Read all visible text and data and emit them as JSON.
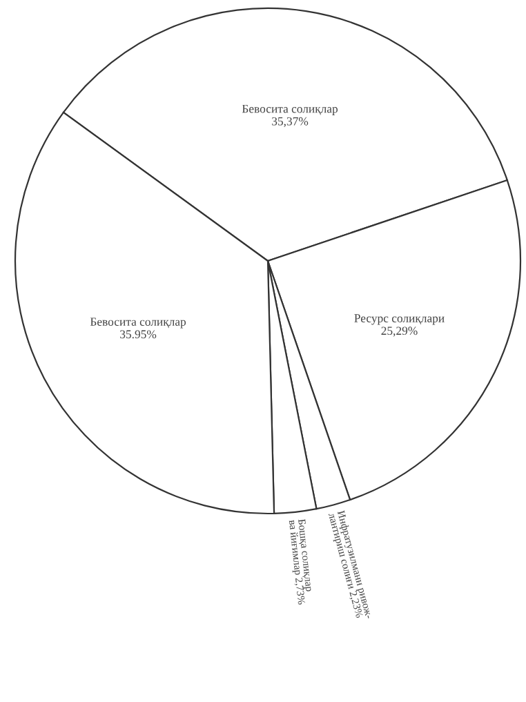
{
  "chart_data": {
    "type": "pie",
    "categories": [
      "Бевосита солиқлар",
      "Ресурс солиқлари",
      "Инфратузилмани ривож-\nлантириш солиғи",
      "Бошқа солиқлар\nва йиғимлар",
      "Бевосита солиқлар"
    ],
    "values": [
      35.37,
      25.29,
      2.23,
      2.73,
      35.95
    ],
    "value_labels": [
      "35,37%",
      "25,29%",
      "2,23%",
      "2,73%",
      "35.95%"
    ],
    "colors": [
      "#ffffff",
      "#ffffff",
      "#ffffff",
      "#ffffff",
      "#ffffff"
    ]
  }
}
